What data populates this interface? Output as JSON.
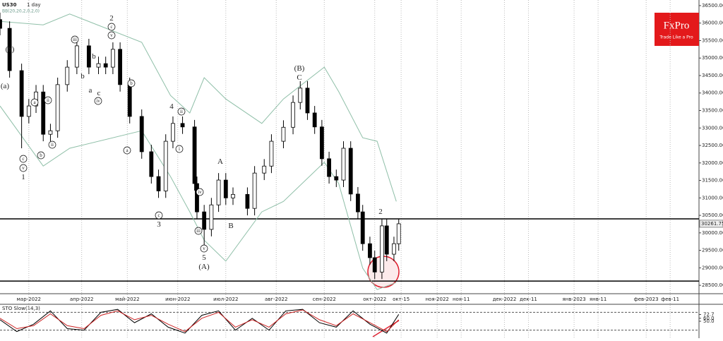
{
  "brand": {
    "name": "FxPro",
    "tagline": "Trade Like a Pro"
  },
  "chart_data": [
    {
      "type": "candlestick",
      "title": "US30",
      "subtitle": "1 day",
      "indicator": "BB(20,20,2,0,2,0)",
      "x": [
        0,
        4,
        9,
        12,
        15,
        18,
        21,
        24,
        28,
        32,
        37,
        41,
        44,
        47,
        50,
        54,
        59,
        63,
        66,
        69,
        72,
        76,
        81,
        82,
        85,
        88,
        91,
        94,
        97,
        103,
        106,
        110,
        113,
        118,
        122,
        125,
        128,
        131,
        134,
        137,
        140,
        143,
        146,
        149,
        151,
        154,
        156,
        159,
        161,
        164,
        166
      ],
      "open": [
        36100,
        35850,
        34640,
        33330,
        33630,
        34030,
        32820,
        32920,
        34240,
        34740,
        35350,
        34740,
        34840,
        34740,
        35250,
        34240,
        33330,
        32320,
        31610,
        31200,
        32620,
        33130,
        33030,
        31410,
        30600,
        30100,
        30800,
        31510,
        31000,
        31100,
        30700,
        31710,
        31910,
        32620,
        33020,
        33730,
        34140,
        33430,
        33030,
        32120,
        31610,
        31510,
        32420,
        31110,
        30600,
        29690,
        29290,
        28880,
        30200,
        29390,
        29690
      ],
      "high": [
        36300,
        36050,
        34840,
        33830,
        34230,
        34230,
        33120,
        34440,
        34940,
        35550,
        35550,
        35040,
        35040,
        35450,
        35450,
        34440,
        33530,
        32520,
        31810,
        32820,
        33330,
        33330,
        33230,
        31610,
        30800,
        31000,
        31710,
        31710,
        31300,
        31300,
        31910,
        32110,
        32820,
        33220,
        33930,
        34340,
        34340,
        33630,
        33230,
        32320,
        31810,
        32620,
        32620,
        31310,
        30800,
        29890,
        29490,
        30400,
        30400,
        29890,
        30400
      ],
      "low": [
        35650,
        34440,
        32420,
        33130,
        33430,
        32620,
        32620,
        32720,
        34040,
        34540,
        34540,
        34540,
        34540,
        34540,
        34040,
        33130,
        32120,
        31410,
        31000,
        31000,
        32420,
        32830,
        31210,
        30400,
        29650,
        29900,
        30600,
        30800,
        30800,
        30500,
        30500,
        31510,
        31710,
        32420,
        32820,
        33530,
        33230,
        32830,
        31920,
        31410,
        31310,
        31310,
        30910,
        30400,
        29490,
        29090,
        28680,
        28680,
        29190,
        29190,
        29490
      ],
      "close": [
        35850,
        34640,
        33330,
        33630,
        34030,
        32820,
        32920,
        34240,
        34740,
        35350,
        34740,
        34840,
        34740,
        35250,
        34240,
        33330,
        32320,
        31610,
        31200,
        32620,
        33130,
        33030,
        31410,
        30600,
        30100,
        30800,
        31510,
        31000,
        31100,
        30700,
        31710,
        31910,
        32620,
        33020,
        33730,
        34140,
        33430,
        33030,
        32120,
        31610,
        31510,
        32420,
        31110,
        30600,
        29690,
        29290,
        28880,
        30200,
        29390,
        29690,
        30260
      ],
      "series": [
        {
          "color": "#8fbfa8",
          "x": [
            0,
            18,
            29,
            59,
            71,
            79,
            85,
            94,
            109,
            118,
            135,
            141,
            151,
            157,
            165
          ],
          "values": [
            36050,
            35950,
            36260,
            35450,
            33930,
            33430,
            34440,
            33830,
            33130,
            33830,
            34740,
            34040,
            32720,
            32620,
            30900
          ]
        },
        {
          "color": "#8fbfa8",
          "x": [
            0,
            18,
            29,
            59,
            71,
            79,
            85,
            94,
            109,
            118,
            135,
            141,
            151,
            157,
            165
          ],
          "values": [
            33630,
            31910,
            32420,
            32920,
            31610,
            30600,
            29790,
            29190,
            30600,
            30900,
            32020,
            31410,
            28990,
            28380,
            28580
          ]
        }
      ],
      "levels": [
        30400,
        28620
      ],
      "last_label": {
        "value": 30261.75,
        "label": "30261.75"
      },
      "xlim": [
        0,
        291
      ],
      "ylim": [
        28260,
        36620
      ],
      "yticks": [
        {
          "value": 36500,
          "label": "36500.00"
        },
        {
          "value": 36000,
          "label": "36000.00"
        },
        {
          "value": 35500,
          "label": "35500.00"
        },
        {
          "value": 35000,
          "label": "35000.00"
        },
        {
          "value": 34500,
          "label": "34500.00"
        },
        {
          "value": 34000,
          "label": "34000.00"
        },
        {
          "value": 33500,
          "label": "33500.00"
        },
        {
          "value": 33000,
          "label": "33000.00"
        },
        {
          "value": 32500,
          "label": "32500.00"
        },
        {
          "value": 32000,
          "label": "32000.00"
        },
        {
          "value": 31500,
          "label": "31500.00"
        },
        {
          "value": 31000,
          "label": "31000.00"
        },
        {
          "value": 30500,
          "label": "30500.00"
        },
        {
          "value": 30000,
          "label": "30000.00"
        },
        {
          "value": 29500,
          "label": "29500.00"
        },
        {
          "value": 29000,
          "label": "29000.00"
        },
        {
          "value": 28500,
          "label": "28500.00"
        }
      ],
      "xticks": [
        {
          "value": 12,
          "label": "мар-2022"
        },
        {
          "value": 34,
          "label": "апр-2022"
        },
        {
          "value": 53,
          "label": "май-2022"
        },
        {
          "value": 74,
          "label": "июн-2022"
        },
        {
          "value": 94,
          "label": "июл-2022"
        },
        {
          "value": 115,
          "label": "авг-2022"
        },
        {
          "value": 135,
          "label": "сен-2022"
        },
        {
          "value": 156,
          "label": "окт-2022"
        },
        {
          "value": 167,
          "label": "окт-15"
        },
        {
          "value": 182,
          "label": "ноя-2022"
        },
        {
          "value": 192,
          "label": "ноя-11"
        },
        {
          "value": 210,
          "label": "дек-2022"
        },
        {
          "value": 220,
          "label": "дек-11"
        },
        {
          "value": 239,
          "label": "янв-2023"
        },
        {
          "value": 249,
          "label": "янв-11"
        },
        {
          "value": 269,
          "label": "фев-2023"
        },
        {
          "value": 279,
          "label": "фев-11"
        }
      ],
      "annotations": [
        "(b)",
        "(a)",
        "c",
        "v",
        "1",
        "2",
        "c",
        "v",
        "iii",
        "b",
        "b",
        "a",
        "c",
        "iv",
        "a",
        "ii",
        "b",
        "ii",
        "b",
        "a",
        "4",
        "ii",
        "i",
        "c",
        "3",
        "iv",
        "iii",
        "v",
        "5",
        "(A)",
        "A",
        "B",
        "(B)",
        "C",
        "2"
      ]
    },
    {
      "type": "line",
      "title": "STO Slow(14,3)",
      "x": [
        0,
        7,
        14,
        21,
        28,
        35,
        42,
        49,
        56,
        63,
        70,
        77,
        84,
        91,
        98,
        105,
        112,
        119,
        126,
        133,
        140,
        147,
        154,
        161,
        166
      ],
      "series": [
        {
          "color": "#000000",
          "values": [
            55,
            15,
            40,
            85,
            25,
            20,
            80,
            90,
            45,
            75,
            30,
            10,
            70,
            85,
            20,
            60,
            20,
            85,
            90,
            45,
            30,
            85,
            40,
            10,
            73
          ]
        },
        {
          "color": "#cc2222",
          "values": [
            60,
            25,
            35,
            75,
            35,
            25,
            70,
            85,
            55,
            70,
            40,
            15,
            60,
            80,
            30,
            55,
            30,
            75,
            88,
            55,
            35,
            75,
            45,
            15,
            55
          ]
        }
      ],
      "levels": [
        80,
        20
      ],
      "xlim": [
        0,
        291
      ],
      "ylim": [
        0,
        100
      ],
      "yticks": [
        {
          "value": 72.7,
          "label": "72.7"
        },
        {
          "value": 60,
          "label": "60.0"
        },
        {
          "value": 50,
          "label": "50.0"
        }
      ]
    }
  ]
}
